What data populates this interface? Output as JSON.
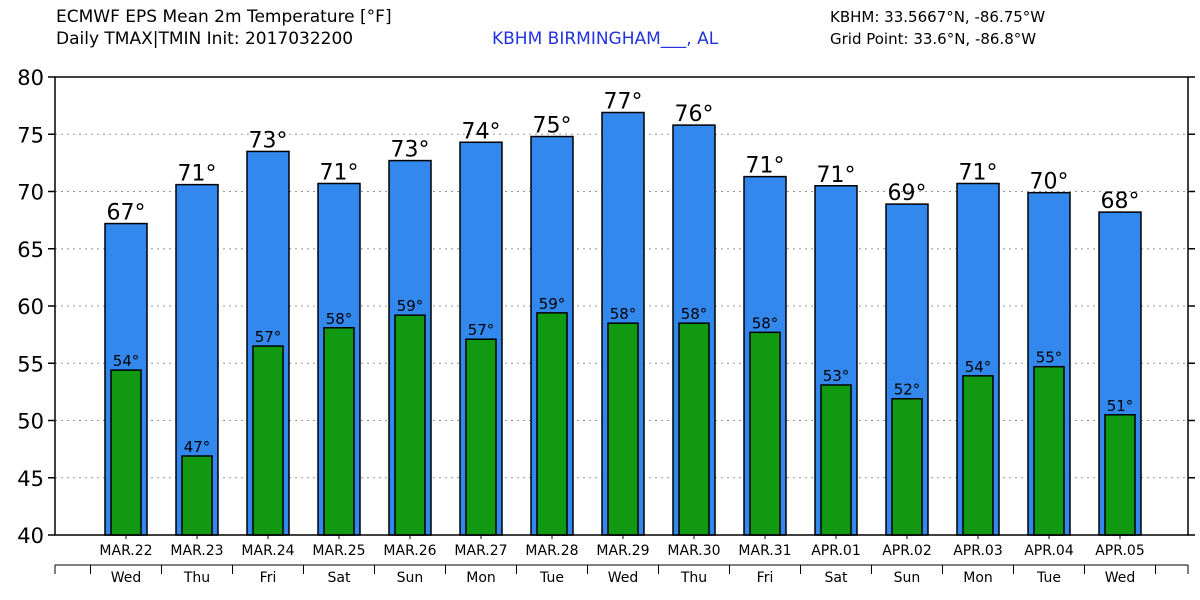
{
  "header": {
    "title_line1": "ECMWF EPS Mean 2m Temperature [°F]",
    "title_line2": "Daily TMAX|TMIN Init: 2017032200",
    "station": "KBHM BIRMINGHAM___, AL",
    "station_coords": "KBHM: 33.5667°N, -86.75°W",
    "grid_point": "Grid Point: 33.6°N, -86.8°W"
  },
  "colors": {
    "tmax_bar": "#3388ee",
    "tmin_bar": "#119911",
    "station_text": "#2233dd"
  },
  "chart_data": {
    "type": "bar",
    "title": "ECMWF EPS Mean 2m Temperature [°F]",
    "ylim": [
      40,
      80
    ],
    "yticks": [
      40,
      45,
      50,
      55,
      60,
      65,
      70,
      75,
      80
    ],
    "grid": true,
    "categories": [
      "MAR.22",
      "MAR.23",
      "MAR.24",
      "MAR.25",
      "MAR.26",
      "MAR.27",
      "MAR.28",
      "MAR.29",
      "MAR.30",
      "MAR.31",
      "APR.01",
      "APR.02",
      "APR.03",
      "APR.04",
      "APR.05"
    ],
    "weekdays": [
      "Wed",
      "Thu",
      "Fri",
      "Sat",
      "Sun",
      "Mon",
      "Tue",
      "Wed",
      "Thu",
      "Fri",
      "Sat",
      "Sun",
      "Mon",
      "Tue",
      "Wed"
    ],
    "series": [
      {
        "name": "TMAX",
        "values": [
          67.2,
          70.6,
          73.5,
          70.7,
          72.7,
          74.3,
          74.8,
          76.9,
          75.8,
          71.3,
          70.5,
          68.9,
          70.7,
          69.9,
          68.2
        ],
        "labels": [
          "67°",
          "71°",
          "73°",
          "71°",
          "73°",
          "74°",
          "75°",
          "77°",
          "76°",
          "71°",
          "71°",
          "69°",
          "71°",
          "70°",
          "68°"
        ]
      },
      {
        "name": "TMIN",
        "values": [
          54.4,
          46.9,
          56.5,
          58.1,
          59.2,
          57.1,
          59.4,
          58.5,
          58.5,
          57.7,
          53.1,
          51.9,
          53.9,
          54.7,
          50.5
        ],
        "labels": [
          "54°",
          "47°",
          "57°",
          "58°",
          "59°",
          "57°",
          "59°",
          "58°",
          "58°",
          "58°",
          "53°",
          "52°",
          "54°",
          "55°",
          "51°"
        ]
      }
    ]
  }
}
